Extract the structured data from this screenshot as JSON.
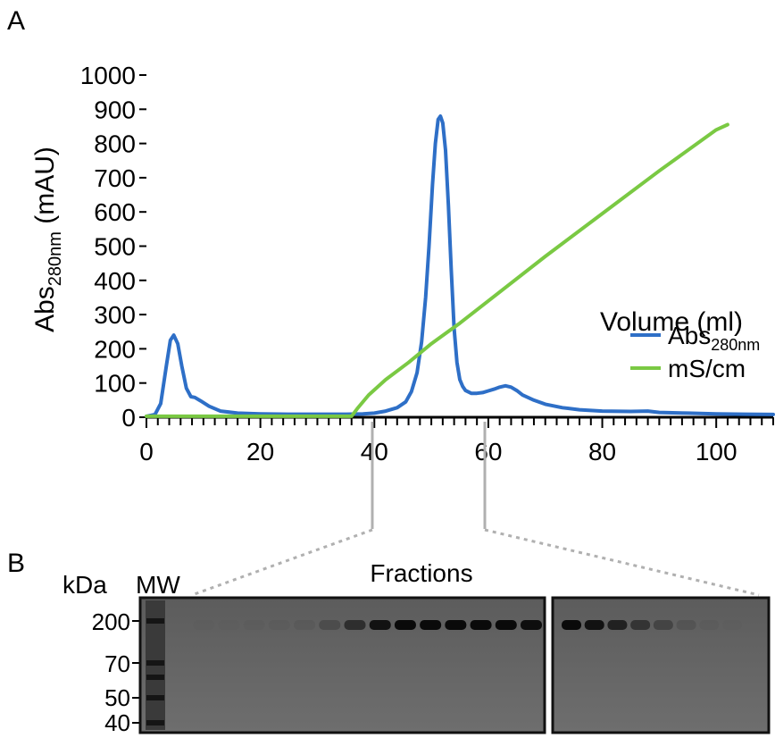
{
  "panels": {
    "a_label": "A",
    "b_label": "B"
  },
  "chart_data": {
    "type": "line",
    "title": "",
    "ylabel_main": "Abs",
    "ylabel_sub": "280nm",
    "ylabel_unit": "(mAU)",
    "xlabel": "Volume (ml)",
    "xlim": [
      0,
      110
    ],
    "ylim": [
      0,
      1000
    ],
    "xticks": [
      0,
      20,
      40,
      60,
      80,
      100
    ],
    "yticks": [
      0,
      100,
      200,
      300,
      400,
      500,
      600,
      700,
      800,
      900,
      1000
    ],
    "grid": false,
    "legend_position": "right",
    "series": [
      {
        "name": "Abs",
        "name_sub": "280nm",
        "color": "#2e6fc7",
        "x": [
          0,
          1.5,
          2.5,
          3.5,
          4.2,
          4.8,
          5.5,
          6.2,
          7,
          7.8,
          8.5,
          9.5,
          11,
          13,
          16,
          20,
          25,
          30,
          35,
          38,
          40,
          42,
          44,
          45.5,
          46.5,
          47.5,
          48.3,
          49,
          49.6,
          50.2,
          50.7,
          51.2,
          51.6,
          52,
          52.5,
          53,
          53.5,
          54,
          54.5,
          55,
          55.5,
          56,
          57,
          58,
          59,
          60,
          61,
          62,
          63,
          64,
          65,
          66,
          68,
          70,
          73,
          76,
          80,
          85,
          88,
          90,
          95,
          100,
          105,
          110
        ],
        "y": [
          3,
          8,
          40,
          150,
          225,
          240,
          215,
          150,
          85,
          60,
          58,
          48,
          32,
          18,
          12,
          10,
          9,
          9,
          9,
          10,
          12,
          18,
          28,
          45,
          75,
          130,
          220,
          350,
          500,
          680,
          800,
          870,
          880,
          860,
          780,
          620,
          430,
          260,
          160,
          110,
          90,
          78,
          70,
          70,
          72,
          77,
          82,
          88,
          92,
          88,
          78,
          65,
          50,
          38,
          28,
          22,
          18,
          17,
          18,
          14,
          12,
          10,
          9,
          8
        ]
      },
      {
        "name": "mS/cm",
        "color": "#7ac943",
        "x": [
          0,
          5,
          10,
          20,
          30,
          36,
          37,
          39,
          42,
          46,
          50,
          55,
          60,
          70,
          80,
          90,
          100,
          102
        ],
        "y": [
          3,
          3,
          3,
          3,
          3,
          3,
          25,
          65,
          110,
          160,
          215,
          275,
          340,
          470,
          595,
          720,
          840,
          855
        ]
      }
    ]
  },
  "gel": {
    "kda_label": "kDa",
    "mw_label": "MW",
    "fractions_label": "Fractions",
    "marker_labels": [
      "200",
      "70",
      "50",
      "40"
    ],
    "band_intensity_left": [
      0.0,
      0.05,
      0.08,
      0.12,
      0.18,
      0.25,
      0.45,
      0.75,
      0.95,
      1.0,
      1.0,
      1.0,
      1.0,
      1.0,
      0.98
    ],
    "band_intensity_right": [
      1.0,
      0.95,
      0.85,
      0.7,
      0.55,
      0.35,
      0.18,
      0.08
    ]
  }
}
